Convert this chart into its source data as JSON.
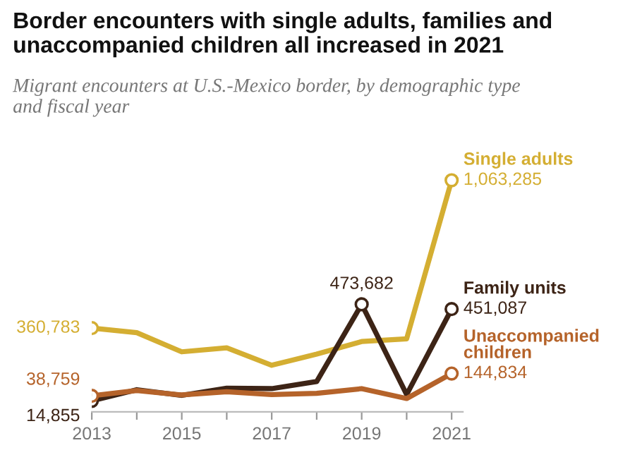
{
  "chart_data": {
    "type": "line",
    "title": "Border encounters with single adults, families and\nunaccompanied children all increased in 2021",
    "subtitle": "Migrant encounters at U.S.-Mexico border, by demographic type\nand fiscal year",
    "x": [
      2013,
      2014,
      2015,
      2016,
      2017,
      2018,
      2019,
      2020,
      2021
    ],
    "xlim": [
      2013,
      2021.25
    ],
    "xticks": [
      2013,
      {
        "value": 2014,
        "label": null
      },
      2015,
      {
        "value": 2016,
        "label": null
      },
      2017,
      {
        "value": 2018,
        "label": null
      },
      2019,
      {
        "value": 2020,
        "label": null
      },
      2021
    ],
    "tick_labels": "x",
    "grid": false,
    "legend": false,
    "line_style": "solid",
    "series": [
      {
        "name": "Single adults",
        "color": "#d4ae32",
        "values": [
          360783,
          339000,
          248000,
          267000,
          184000,
          237000,
          297000,
          310000,
          1063285
        ],
        "value_labels": [
          "360,783",
          null,
          null,
          null,
          null,
          null,
          null,
          null,
          "1,063,285"
        ]
      },
      {
        "name": "Family units",
        "color": "#3d2416",
        "values": [
          14855,
          68000,
          41000,
          75000,
          73000,
          107000,
          473682,
          45000,
          451087
        ],
        "value_labels": [
          "14,855",
          null,
          null,
          null,
          null,
          null,
          "473,682",
          null,
          "451,087"
        ]
      },
      {
        "name": "Unaccompanied\nchildren",
        "color": "#b5632a",
        "values": [
          38759,
          64000,
          43000,
          58000,
          45000,
          51000,
          73000,
          26000,
          144834
        ],
        "value_labels": [
          "38,759",
          null,
          null,
          null,
          null,
          null,
          null,
          null,
          "144,834"
        ]
      }
    ]
  }
}
